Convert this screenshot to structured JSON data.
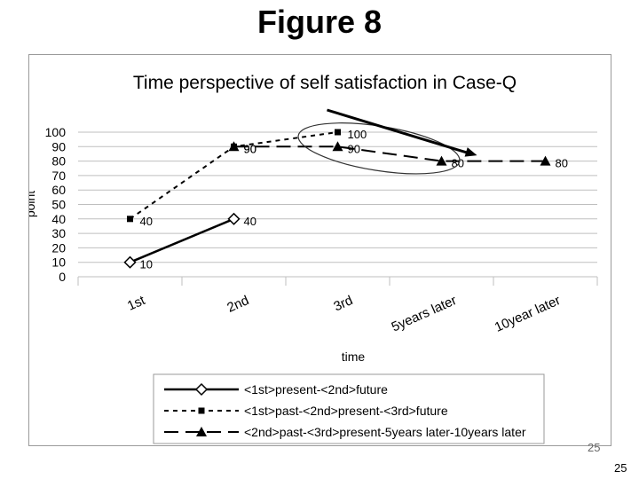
{
  "slide": {
    "title": "Figure 8",
    "page_number_inner": "25",
    "page_number_outer": "25"
  },
  "colors": {
    "line": "#000000",
    "grid": "#bfbfbf",
    "frame": "#9a9a9a"
  },
  "chart_data": {
    "type": "line",
    "title": "Time perspective of self satisfaction in Case-Q",
    "xlabel": "time",
    "ylabel": "point",
    "ylim": [
      0,
      100
    ],
    "ytick_step": 10,
    "categories": [
      "1st",
      "2nd",
      "3rd",
      "5years later",
      "10year later"
    ],
    "legend_position": "bottom",
    "series": [
      {
        "name": "<1st>present-<2nd>future",
        "style": "solid",
        "marker": "diamond",
        "values": [
          10,
          40,
          null,
          null,
          null
        ]
      },
      {
        "name": "<1st>past-<2nd>present-<3rd>future",
        "style": "dotted",
        "marker": "square",
        "values": [
          40,
          90,
          100,
          null,
          null
        ]
      },
      {
        "name": "<2nd>past-<3rd>present-5years later-10years later",
        "style": "dashed",
        "marker": "triangle",
        "values": [
          null,
          90,
          90,
          80,
          80
        ]
      }
    ],
    "annotations": [
      "ellipse around 3rd–5years later points",
      "downward arrow across 3rd–5years later"
    ]
  }
}
